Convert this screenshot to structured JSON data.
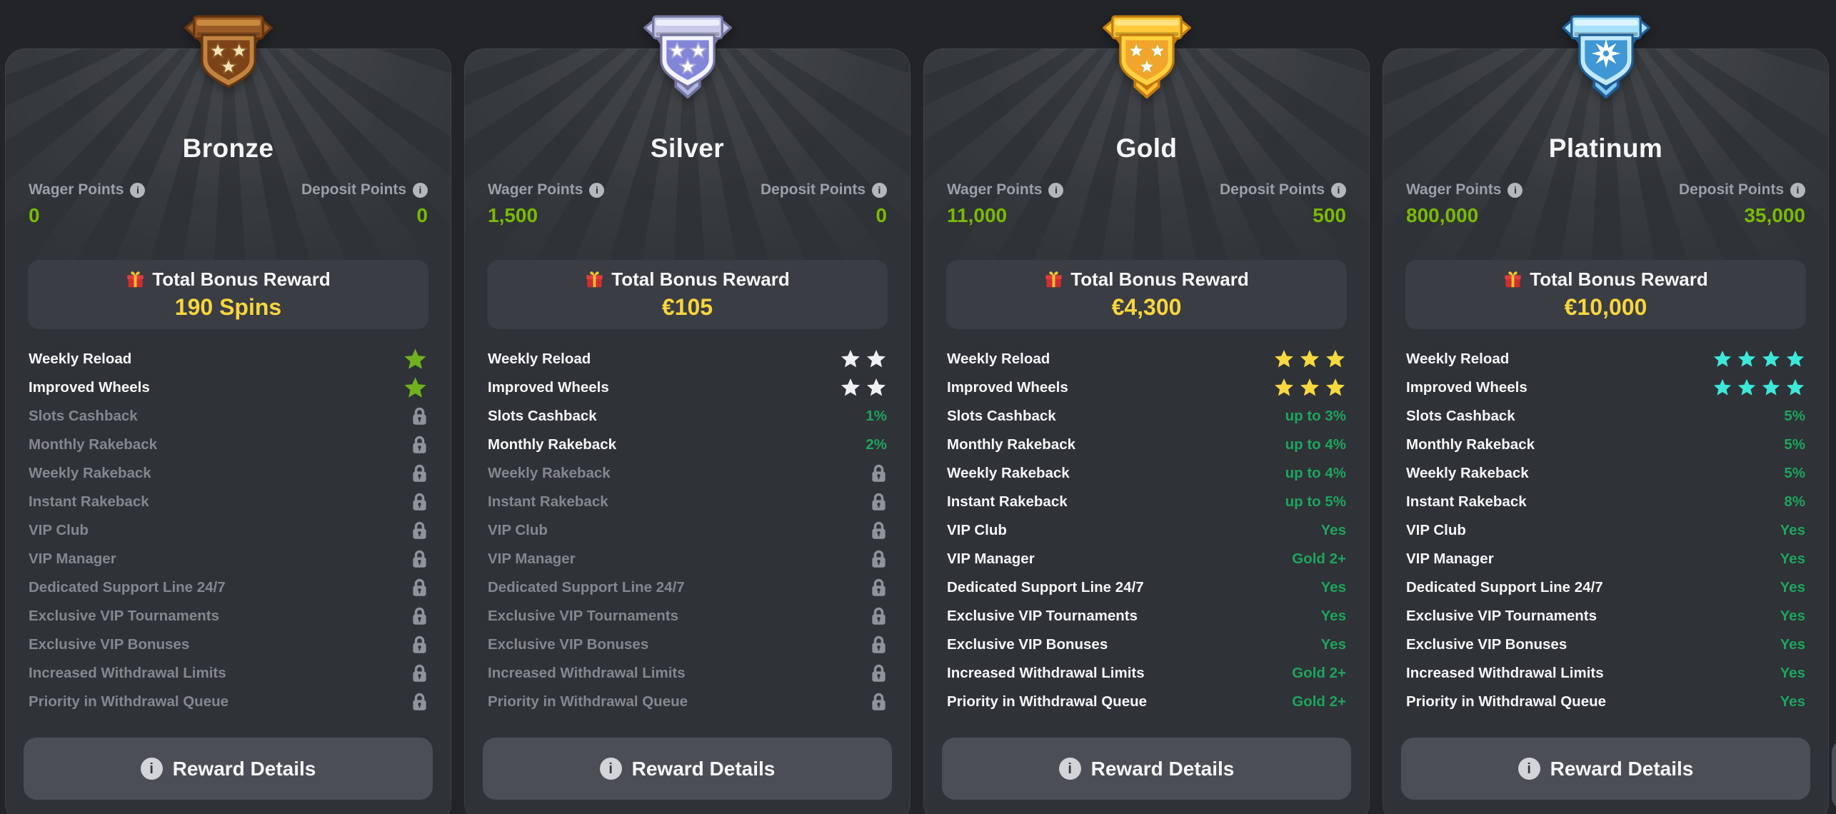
{
  "colors": {
    "page_bg": "#222428",
    "card_bg": "#2f3236",
    "panel_bg": "#3a3d43",
    "button_bg": "#4b4f55",
    "white_text": "#f5f6f7",
    "muted_label": "#9aa0a6",
    "locked_label": "#84878d",
    "lock_gray": "#8f939a",
    "lime_green": "#79ba05",
    "emerald_green": "#1da55e",
    "bonus_yellow": "#f7d53d"
  },
  "icons": {
    "info_glyph": "i",
    "gift_icon": "gift-icon",
    "lock_icon": "lock-icon",
    "star_icon": "star-icon"
  },
  "shared": {
    "wager_points_label": "Wager Points",
    "deposit_points_label": "Deposit Points",
    "bonus_label": "Total Bonus Reward",
    "button_label": "Reward Details",
    "feature_labels": [
      "Weekly Reload",
      "Improved Wheels",
      "Slots Cashback",
      "Monthly Rakeback",
      "Weekly Rakeback",
      "Instant Rakeback",
      "VIP Club",
      "VIP Manager",
      "Dedicated Support Line 24/7",
      "Exclusive VIP Tournaments",
      "Exclusive VIP Bonuses",
      "Increased Withdrawal Limits",
      "Priority in Withdrawal Queue"
    ]
  },
  "cards": [
    {
      "tier": "Bronze",
      "wager_points": "0",
      "deposit_points": "0",
      "bonus_value": "190 Spins",
      "star_color": "#6fb11f",
      "badge": {
        "emblem": "three-stars",
        "tail": false,
        "palette": {
          "dark": "#63350f",
          "bar": "#9a5b28",
          "bar_light": "#c8893f",
          "rim": "#c08440",
          "inner": "#7c4319",
          "star": "#f2e3b7",
          "star_stroke": "#8a5a20",
          "tail": "#9a5b28"
        }
      },
      "features": [
        {
          "type": "stars",
          "count": 1
        },
        {
          "type": "stars",
          "count": 1
        },
        {
          "type": "lock"
        },
        {
          "type": "lock"
        },
        {
          "type": "lock"
        },
        {
          "type": "lock"
        },
        {
          "type": "lock"
        },
        {
          "type": "lock"
        },
        {
          "type": "lock"
        },
        {
          "type": "lock"
        },
        {
          "type": "lock"
        },
        {
          "type": "lock"
        },
        {
          "type": "lock"
        }
      ]
    },
    {
      "tier": "Silver",
      "wager_points": "1,500",
      "deposit_points": "0",
      "bonus_value": "€105",
      "star_color": "#eef0f2",
      "badge": {
        "emblem": "three-stars",
        "tail": true,
        "palette": {
          "dark": "#73749f",
          "bar": "#c9c9e9",
          "bar_light": "#eeeefb",
          "rim": "#f3f3fc",
          "inner": "#8286d8",
          "star": "#ffffff",
          "star_stroke": "#a9aad6",
          "tail": "#b1b3e2"
        }
      },
      "features": [
        {
          "type": "stars",
          "count": 2
        },
        {
          "type": "stars",
          "count": 2
        },
        {
          "type": "text",
          "value": "1%"
        },
        {
          "type": "text",
          "value": "2%"
        },
        {
          "type": "lock"
        },
        {
          "type": "lock"
        },
        {
          "type": "lock"
        },
        {
          "type": "lock"
        },
        {
          "type": "lock"
        },
        {
          "type": "lock"
        },
        {
          "type": "lock"
        },
        {
          "type": "lock"
        },
        {
          "type": "lock"
        }
      ]
    },
    {
      "tier": "Gold",
      "wager_points": "11,000",
      "deposit_points": "500",
      "bonus_value": "€4,300",
      "star_color": "#f6d840",
      "badge": {
        "emblem": "three-stars",
        "tail": true,
        "palette": {
          "dark": "#bf7a10",
          "bar": "#ffc937",
          "bar_light": "#ffe382",
          "rim": "#ffd23f",
          "inner": "#f2a42c",
          "star": "#ffffff",
          "star_stroke": "#e3aa2e",
          "tail": "#ffbe2f"
        }
      },
      "features": [
        {
          "type": "stars",
          "count": 3
        },
        {
          "type": "stars",
          "count": 3
        },
        {
          "type": "text",
          "value": "up to 3%"
        },
        {
          "type": "text",
          "value": "up to 4%"
        },
        {
          "type": "text",
          "value": "up to 4%"
        },
        {
          "type": "text",
          "value": "up to 5%"
        },
        {
          "type": "text",
          "value": "Yes"
        },
        {
          "type": "text",
          "value": "Gold 2+"
        },
        {
          "type": "text",
          "value": "Yes"
        },
        {
          "type": "text",
          "value": "Yes"
        },
        {
          "type": "text",
          "value": "Yes"
        },
        {
          "type": "text",
          "value": "Gold 2+"
        },
        {
          "type": "text",
          "value": "Gold 2+"
        }
      ]
    },
    {
      "tier": "Platinum",
      "wager_points": "800,000",
      "deposit_points": "35,000",
      "bonus_value": "€10,000",
      "star_color": "#3ce8d9",
      "badge": {
        "emblem": "burst-star",
        "tail": true,
        "palette": {
          "dark": "#1f5e96",
          "bar": "#a6e0fb",
          "bar_light": "#dcf4fe",
          "rim": "#c2eafc",
          "inner": "#3f97d3",
          "star": "#ffffff",
          "star_stroke": "#9bd8f9",
          "tail": "#7fc6f0"
        }
      },
      "features": [
        {
          "type": "stars",
          "count": 4
        },
        {
          "type": "stars",
          "count": 4
        },
        {
          "type": "text",
          "value": "5%"
        },
        {
          "type": "text",
          "value": "5%"
        },
        {
          "type": "text",
          "value": "5%"
        },
        {
          "type": "text",
          "value": "8%"
        },
        {
          "type": "text",
          "value": "Yes"
        },
        {
          "type": "text",
          "value": "Yes"
        },
        {
          "type": "text",
          "value": "Yes"
        },
        {
          "type": "text",
          "value": "Yes"
        },
        {
          "type": "text",
          "value": "Yes"
        },
        {
          "type": "text",
          "value": "Yes"
        },
        {
          "type": "text",
          "value": "Yes"
        }
      ]
    }
  ],
  "next_card_peek": true
}
